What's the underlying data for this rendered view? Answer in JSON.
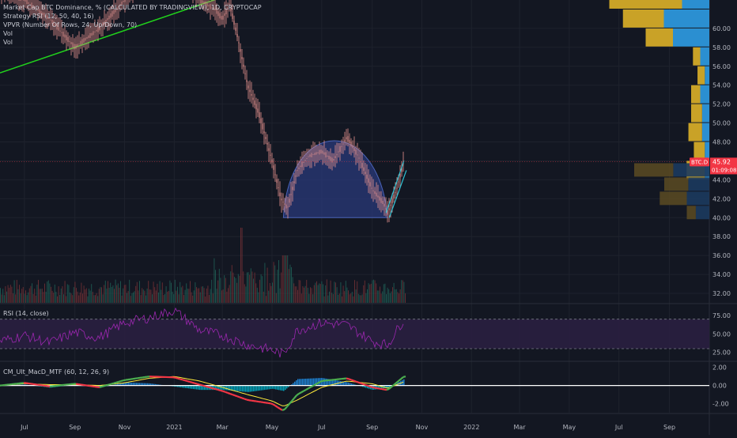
{
  "header": {
    "main_title": "Market Cap BTC Dominance, % (CALCULATED BY TRADINGVIEW), 1D, CRYPTOCAP",
    "indicators": [
      "Strategy RSI (12, 50, 40, 16)",
      "VPVR (Number Of Rows, 24, Up/Down, 70)",
      "Vol",
      "Vol"
    ]
  },
  "price_tag": {
    "symbol": "BTC.D",
    "price": "45.92",
    "countdown": "01:09:08"
  },
  "rsi_title": "RSI (14, close)",
  "macd_title": "CM_Ult_MacD_MTF (60, 12, 26, 9)",
  "colors": {
    "background": "#131722",
    "grid": "#1e222d",
    "bull": "#26a69a",
    "bear": "#ef5350",
    "candle": "#e8948f",
    "trend_line": "#21d11c",
    "cup_fill": "#2a3a7a",
    "cup_stroke": "#4a63b8",
    "channel": "#2fc4d6",
    "rsi_line": "#9c27b0",
    "rsi_band": "#2a1f40",
    "macd_up": "#4caf50",
    "macd_down": "#f23645",
    "hist_up": "#2196f3",
    "hist_down": "#00bcd4",
    "vp_up": "#c9a227",
    "vp_down": "#2b8fd1",
    "price_tag": "#f23645"
  },
  "chart_data": [
    {
      "type": "line",
      "name": "price",
      "x_axis_labels": [
        "Jul",
        "Sep",
        "Nov",
        "2021",
        "Mar",
        "May",
        "Jul",
        "Sep",
        "Nov",
        "2022",
        "Mar",
        "May",
        "Jul",
        "Sep"
      ],
      "y_ticks": [
        32.0,
        34.0,
        36.0,
        38.0,
        40.0,
        42.0,
        44.0,
        46.0,
        48.0,
        50.0,
        52.0,
        54.0,
        56.0,
        58.0,
        60.0
      ],
      "ylim": [
        31.0,
        63.0
      ],
      "x": [
        "2020-06-01",
        "2020-07-01",
        "2020-08-01",
        "2020-09-01",
        "2020-10-01",
        "2020-11-01",
        "2020-12-01",
        "2021-01-01",
        "2021-02-01",
        "2021-02-20",
        "2021-03-01",
        "2021-03-10",
        "2021-03-20",
        "2021-04-01",
        "2021-04-15",
        "2021-05-01",
        "2021-05-12",
        "2021-05-20",
        "2021-06-01",
        "2021-06-15",
        "2021-07-01",
        "2021-07-15",
        "2021-08-01",
        "2021-08-15",
        "2021-09-01",
        "2021-09-15",
        "2021-09-20",
        "2021-10-01",
        "2021-10-10"
      ],
      "values": [
        64.0,
        63.0,
        61.0,
        58.0,
        60.0,
        63.0,
        65.5,
        67.0,
        63.0,
        62.0,
        61.0,
        62.5,
        59.0,
        54.0,
        51.0,
        46.0,
        42.0,
        41.0,
        45.0,
        46.5,
        47.0,
        46.0,
        48.5,
        46.5,
        43.0,
        41.5,
        40.5,
        43.0,
        46.0
      ],
      "current_value": 45.92,
      "trend_line": {
        "x": [
          "2020-06-01",
          "2021-03-01"
        ],
        "y": [
          55.3,
          63.3
        ]
      },
      "cup": {
        "x_start": "2021-05-15",
        "x_peak": "2021-07-20",
        "x_end": "2021-09-20",
        "y_base": 40.0,
        "y_peak": 49.0
      },
      "channel": {
        "upper": {
          "x": [
            "2021-09-18",
            "2021-10-10"
          ],
          "y": [
            40.5,
            46.0
          ]
        },
        "lower": {
          "x": [
            "2021-09-22",
            "2021-10-13"
          ],
          "y": [
            40.0,
            45.0
          ]
        }
      }
    },
    {
      "type": "bar",
      "name": "volume-profile",
      "price_levels": [
        64.0,
        62.0,
        60.0,
        58.0,
        56.0,
        54.0,
        52.0,
        50.0,
        48.0,
        46.0
      ],
      "up": [
        0.8,
        0.45,
        0.3,
        0.08,
        0.08,
        0.1,
        0.12,
        0.15,
        0.12,
        0.2
      ],
      "down": [
        0.3,
        0.5,
        0.4,
        0.1,
        0.05,
        0.1,
        0.08,
        0.08,
        0.05,
        0.05
      ],
      "secondary_levels": [
        45.0,
        43.5,
        42.0,
        40.5
      ],
      "secondary_up": [
        0.52,
        0.32,
        0.36,
        0.12
      ],
      "secondary_down": [
        0.48,
        0.28,
        0.3,
        0.18
      ]
    },
    {
      "type": "line",
      "name": "rsi",
      "y_ticks": [
        25.0,
        50.0,
        75.0
      ],
      "ylim": [
        15.0,
        90.0
      ],
      "band": [
        30.0,
        70.0
      ],
      "x": [
        "2020-06-01",
        "2020-07-01",
        "2020-08-01",
        "2020-09-01",
        "2020-10-01",
        "2020-11-01",
        "2020-12-01",
        "2021-01-01",
        "2021-02-01",
        "2021-03-01",
        "2021-04-01",
        "2021-05-01",
        "2021-05-15",
        "2021-06-01",
        "2021-07-01",
        "2021-08-01",
        "2021-09-01",
        "2021-09-20",
        "2021-10-10"
      ],
      "values": [
        40.0,
        48.0,
        38.0,
        52.0,
        45.0,
        65.0,
        72.0,
        82.0,
        55.0,
        48.0,
        35.0,
        28.0,
        22.0,
        55.0,
        65.0,
        62.0,
        40.0,
        35.0,
        70.0
      ]
    },
    {
      "type": "line",
      "name": "macd",
      "y_ticks": [
        -2.0,
        0.0,
        2.0
      ],
      "ylim": [
        -3.0,
        2.5
      ],
      "x": [
        "2020-06-01",
        "2020-07-01",
        "2020-08-01",
        "2020-09-01",
        "2020-10-01",
        "2020-11-01",
        "2020-12-01",
        "2021-01-01",
        "2021-02-01",
        "2021-03-01",
        "2021-04-01",
        "2021-05-01",
        "2021-05-15",
        "2021-06-01",
        "2021-07-01",
        "2021-08-01",
        "2021-09-01",
        "2021-09-20",
        "2021-10-10"
      ],
      "macd": [
        0.0,
        0.3,
        -0.1,
        0.2,
        -0.2,
        0.6,
        1.0,
        0.9,
        0.1,
        -0.6,
        -1.6,
        -2.0,
        -2.8,
        -1.0,
        0.5,
        0.8,
        -0.2,
        -0.5,
        1.0
      ],
      "signal": [
        0.0,
        0.2,
        0.1,
        0.1,
        0.0,
        0.3,
        0.8,
        1.0,
        0.5,
        -0.2,
        -1.0,
        -1.7,
        -2.3,
        -1.6,
        -0.2,
        0.5,
        0.2,
        -0.3,
        0.4
      ]
    }
  ]
}
